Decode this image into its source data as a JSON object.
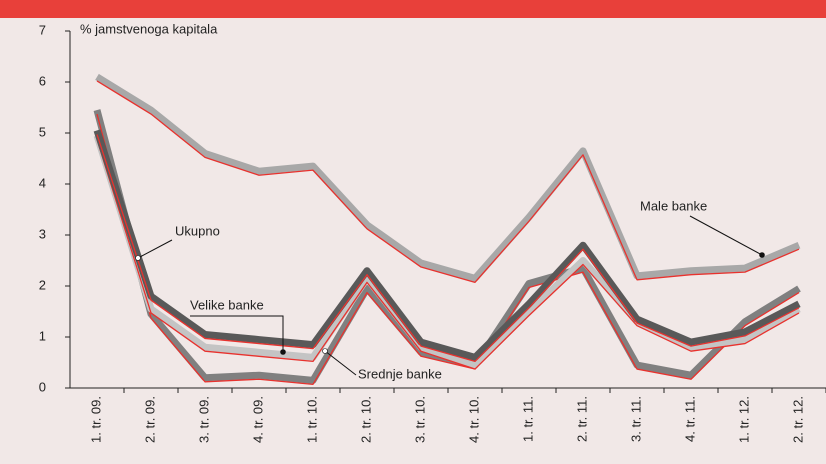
{
  "chart_data": {
    "type": "line",
    "y_label": "% jamstvenoga kapitala",
    "categories": [
      "1. tr. 09.",
      "2. tr. 09.",
      "3. tr. 09.",
      "4. tr. 09.",
      "1. tr. 10.",
      "2. tr. 10.",
      "3. tr. 10.",
      "4. tr. 10.",
      "1. tr. 11.",
      "2. tr. 11.",
      "3. tr. 11.",
      "4. tr. 11.",
      "1. tr. 12.",
      "2. tr. 12."
    ],
    "series": [
      {
        "name": "Male banke",
        "color": "#a8a8a8",
        "values": [
          6.1,
          5.45,
          4.6,
          4.25,
          4.35,
          3.2,
          2.45,
          2.15,
          3.35,
          4.65,
          2.2,
          2.3,
          2.35,
          2.8
        ]
      },
      {
        "name": "Srednje banke",
        "color": "#808080",
        "values": [
          5.45,
          1.45,
          0.2,
          0.25,
          0.15,
          1.95,
          0.7,
          0.45,
          2.05,
          2.35,
          0.45,
          0.25,
          1.3,
          1.95
        ]
      },
      {
        "name": "Velike banke",
        "color": "#c4c4c4",
        "values": [
          4.95,
          1.55,
          0.8,
          0.7,
          0.6,
          2.15,
          0.8,
          0.45,
          1.5,
          2.5,
          1.3,
          0.8,
          0.95,
          1.55
        ]
      },
      {
        "name": "Ukupno",
        "color": "#595959",
        "values": [
          5.05,
          1.8,
          1.05,
          0.95,
          0.85,
          2.3,
          0.9,
          0.6,
          1.65,
          2.8,
          1.35,
          0.9,
          1.1,
          1.65
        ]
      }
    ],
    "ylim": [
      0,
      7
    ],
    "yticks": [
      0,
      1,
      2,
      3,
      4,
      5,
      6,
      7
    ]
  }
}
